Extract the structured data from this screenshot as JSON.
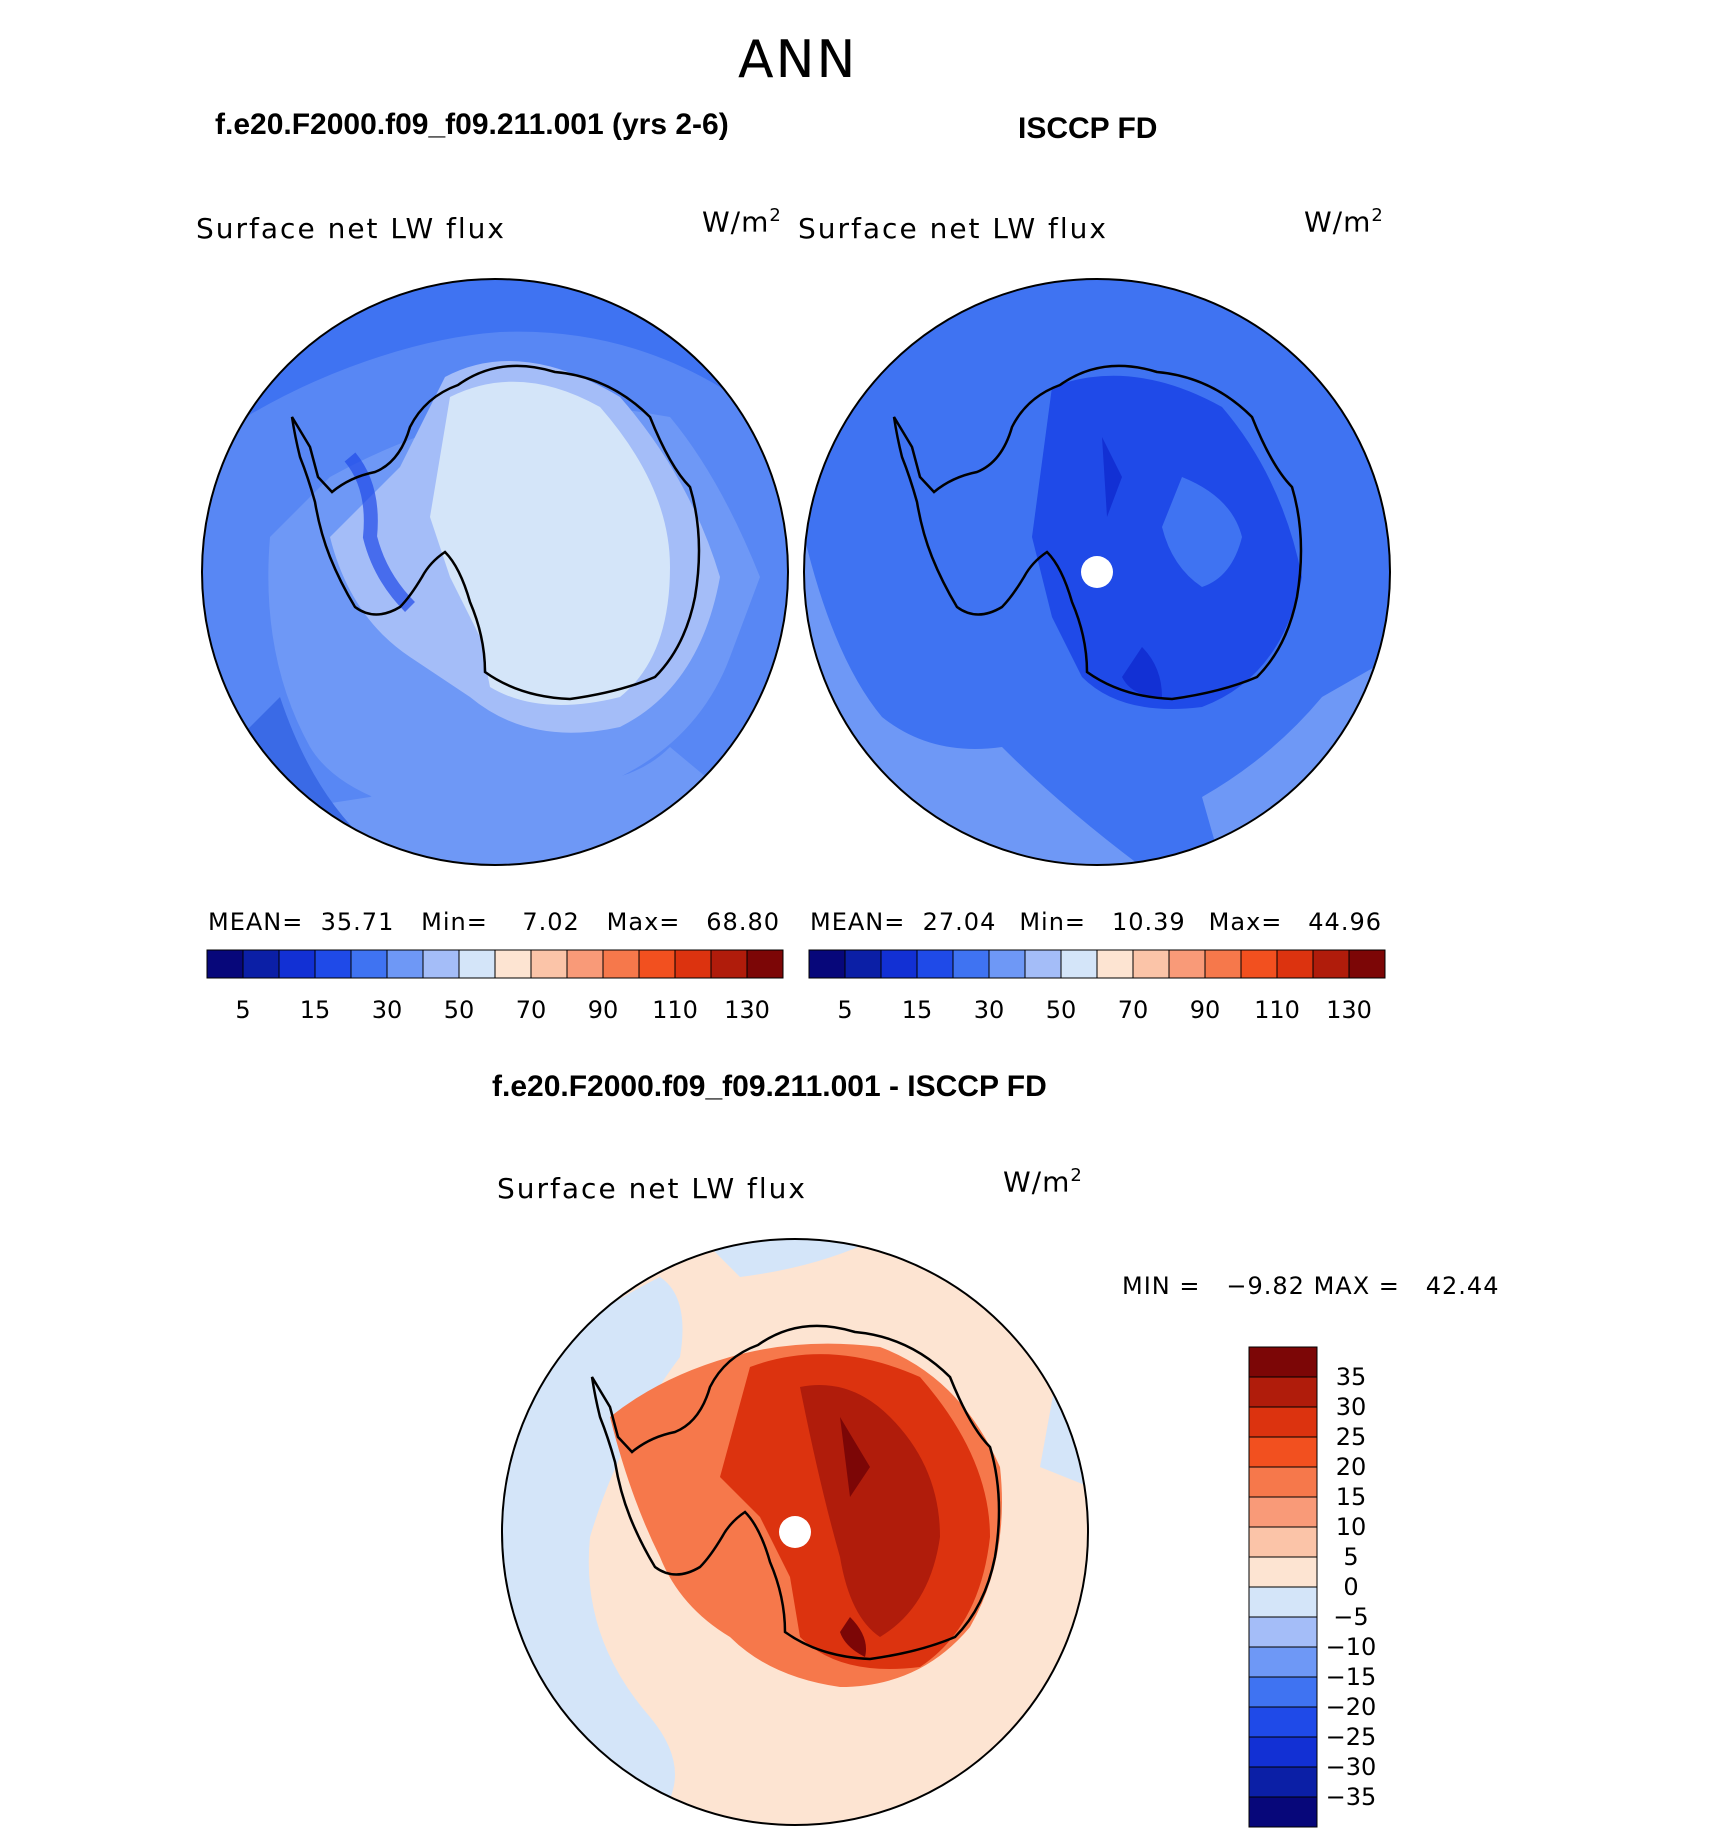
{
  "header": {
    "title": "ANN"
  },
  "panels": [
    {
      "case_title": "f.e20.F2000.f09_f09.211.001 (yrs 2-6)",
      "variable": "Surface net LW flux",
      "units": "W/m",
      "units_exp": "2",
      "stats": {
        "mean_label": "MEAN=",
        "mean": "35.71",
        "min_label": "Min=",
        "min": "7.02",
        "max_label": "Max=",
        "max": "68.80"
      }
    },
    {
      "case_title": "ISCCP FD",
      "variable": "Surface net LW flux",
      "units": "W/m",
      "units_exp": "2",
      "stats": {
        "mean_label": "MEAN=",
        "mean": "27.04",
        "min_label": "Min=",
        "min": "10.39",
        "max_label": "Max=",
        "max": "44.96"
      }
    },
    {
      "case_title": "f.e20.F2000.f09_f09.211.001 - ISCCP FD",
      "variable": "Surface net LW flux",
      "units": "W/m",
      "units_exp": "2",
      "stats": {
        "min_label": "MIN =",
        "min": "−9.82",
        "max_label": "MAX =",
        "max": "42.44"
      }
    }
  ],
  "chart_data": [
    {
      "type": "heatmap",
      "title": "f.e20.F2000.f09_f09.211.001 (yrs 2-6)",
      "subtitle": "Surface net LW flux",
      "units": "W/m2",
      "projection": "south polar stereographic",
      "colorbar": {
        "ticks": [
          "5",
          "15",
          "30",
          "50",
          "70",
          "90",
          "110",
          "130"
        ],
        "colors": [
          "#07077a",
          "#0b1fa6",
          "#1230d4",
          "#1f4ae8",
          "#3f73f2",
          "#6e98f6",
          "#a4bdf8",
          "#d4e5f9",
          "#fde4d2",
          "#fbc4a8",
          "#f99a78",
          "#f6784b",
          "#f2501f",
          "#dc330f",
          "#b01c0b",
          "#7c0606"
        ]
      },
      "stats": {
        "mean": 35.71,
        "min": 7.02,
        "max": 68.8
      }
    },
    {
      "type": "heatmap",
      "title": "ISCCP FD",
      "subtitle": "Surface net LW flux",
      "units": "W/m2",
      "projection": "south polar stereographic",
      "colorbar": {
        "ticks": [
          "5",
          "15",
          "30",
          "50",
          "70",
          "90",
          "110",
          "130"
        ],
        "colors": [
          "#07077a",
          "#0b1fa6",
          "#1230d4",
          "#1f4ae8",
          "#3f73f2",
          "#6e98f6",
          "#a4bdf8",
          "#d4e5f9",
          "#fde4d2",
          "#fbc4a8",
          "#f99a78",
          "#f6784b",
          "#f2501f",
          "#dc330f",
          "#b01c0b",
          "#7c0606"
        ]
      },
      "stats": {
        "mean": 27.04,
        "min": 10.39,
        "max": 44.96
      }
    },
    {
      "type": "heatmap",
      "title": "f.e20.F2000.f09_f09.211.001 - ISCCP FD",
      "subtitle": "Surface net LW flux",
      "units": "W/m2",
      "projection": "south polar stereographic",
      "colorbar": {
        "ticks": [
          "35",
          "30",
          "25",
          "20",
          "15",
          "10",
          "5",
          "0",
          "−5",
          "−10",
          "−15",
          "−20",
          "−25",
          "−30",
          "−35"
        ],
        "colors": [
          "#7c0606",
          "#b01c0b",
          "#dc330f",
          "#f2501f",
          "#f6784b",
          "#f99a78",
          "#fbc4a8",
          "#fde4d2",
          "#d4e5f9",
          "#a4bdf8",
          "#6e98f6",
          "#3f73f2",
          "#1f4ae8",
          "#1230d4",
          "#0b1fa6",
          "#07077a"
        ]
      },
      "stats": {
        "min": -9.82,
        "max": 42.44
      }
    }
  ]
}
